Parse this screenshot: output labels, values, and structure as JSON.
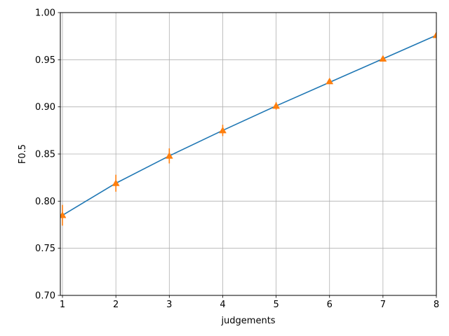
{
  "chart_data": {
    "type": "line",
    "title": "",
    "xlabel": "judgements",
    "ylabel": "F0.5",
    "xlim": [
      0.96,
      8
    ],
    "ylim": [
      0.7,
      1.0
    ],
    "grid": true,
    "x_ticks": [
      1,
      2,
      3,
      4,
      5,
      6,
      7,
      8
    ],
    "x_tick_labels": [
      "1",
      "2",
      "3",
      "4",
      "5",
      "6",
      "7",
      "8"
    ],
    "y_ticks": [
      0.7,
      0.75,
      0.8,
      0.85,
      0.9,
      0.95,
      1.0
    ],
    "y_tick_labels": [
      "0.70",
      "0.75",
      "0.80",
      "0.85",
      "0.90",
      "0.95",
      "1.00"
    ],
    "series": [
      {
        "kind": "fit-line",
        "color": "#1f77b4",
        "x": [
          1,
          2,
          3,
          4,
          5,
          6,
          7,
          8
        ],
        "y": [
          0.785,
          0.819,
          0.848,
          0.875,
          0.901,
          0.926,
          0.951,
          0.976
        ]
      },
      {
        "kind": "points-with-error",
        "color": "#ff7f0e",
        "marker": "triangle-up",
        "x": [
          1,
          2,
          3,
          4,
          5,
          6,
          7,
          8
        ],
        "y": [
          0.785,
          0.819,
          0.848,
          0.875,
          0.901,
          0.927,
          0.951,
          0.976
        ],
        "err": [
          0.011,
          0.009,
          0.008,
          0.006,
          0.004,
          0.002,
          0.002,
          0.001
        ]
      }
    ]
  }
}
